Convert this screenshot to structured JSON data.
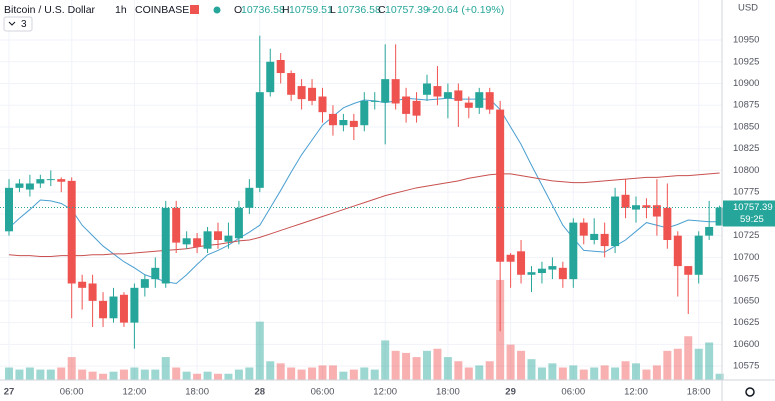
{
  "header": {
    "symbol": "Bitcoin / U.S. Dollar",
    "interval": "1h",
    "exchange": "COINBASE",
    "o": "O",
    "h": "H",
    "l": "L",
    "c": "C",
    "change": "+20.64 (+0.19%)",
    "indicator_count": 3,
    "currency": "USD",
    "countdown": "59:25"
  },
  "chart_data": {
    "type": "candlestick",
    "categories": [
      "27",
      null,
      null,
      null,
      null,
      null,
      "06:00",
      null,
      null,
      null,
      null,
      null,
      "12:00",
      null,
      null,
      null,
      null,
      null,
      "18:00",
      null,
      null,
      null,
      null,
      null,
      "28",
      null,
      null,
      null,
      null,
      null,
      "06:00",
      null,
      null,
      null,
      null,
      null,
      "12:00",
      null,
      null,
      null,
      null,
      null,
      "18:00",
      null,
      null,
      null,
      null,
      null,
      "29",
      null,
      null,
      null,
      null,
      null,
      "06:00",
      null,
      null,
      null,
      null,
      null,
      "12:00",
      null,
      null,
      null,
      null,
      null,
      "18:00",
      null,
      null
    ],
    "open": [
      10730,
      10780,
      10778,
      10785,
      10790,
      10790,
      10788,
      10672,
      10670,
      10650,
      10630,
      10657,
      10625,
      10665,
      10675,
      10670,
      10757,
      10715,
      10722,
      10710,
      10730,
      10718,
      10722,
      10757,
      10780,
      10890,
      10927,
      10912,
      10897,
      10895,
      10885,
      10865,
      10852,
      10857,
      10852,
      10880,
      10878,
      10905,
      10885,
      10880,
      10887,
      10897,
      10883,
      10892,
      10878,
      10872,
      10890,
      10870,
      10703,
      10707,
      10680,
      10682,
      10686,
      10688,
      10675,
      10740,
      10720,
      10727,
      10713,
      10772,
      10755,
      10760,
      10760,
      10757,
      10725,
      10690,
      10680,
      10725,
      10736.58
    ],
    "high": [
      10790,
      10790,
      10795,
      10795,
      10800,
      10792,
      10792,
      10680,
      10680,
      10660,
      10665,
      10660,
      10670,
      10680,
      10700,
      10765,
      10765,
      10730,
      10728,
      10735,
      10740,
      10740,
      10765,
      10790,
      10955,
      10940,
      10935,
      10915,
      10905,
      10905,
      10895,
      10875,
      10865,
      10865,
      10890,
      10890,
      10945,
      10945,
      10895,
      10890,
      10910,
      10920,
      10900,
      10900,
      10885,
      10895,
      10895,
      10880,
      10705,
      10720,
      10690,
      10695,
      10700,
      10695,
      10745,
      10745,
      10745,
      10740,
      10780,
      10790,
      10770,
      10768,
      10790,
      10785,
      10730,
      10690,
      10730,
      10765,
      10759.51
    ],
    "low": [
      10725,
      10775,
      10770,
      10780,
      10782,
      10775,
      10630,
      10640,
      10620,
      10620,
      10625,
      10620,
      10595,
      10655,
      10665,
      10665,
      10705,
      10710,
      10705,
      10705,
      10710,
      10710,
      10715,
      10750,
      10775,
      10885,
      10900,
      10880,
      10870,
      10875,
      10855,
      10840,
      10845,
      10835,
      10845,
      10870,
      10830,
      10870,
      10855,
      10855,
      10880,
      10875,
      10860,
      10850,
      10860,
      10865,
      10865,
      10615,
      10665,
      10670,
      10660,
      10670,
      10675,
      10665,
      10665,
      10715,
      10715,
      10700,
      10705,
      10745,
      10740,
      10745,
      10725,
      10710,
      10655,
      10635,
      10670,
      10720,
      10736.58
    ],
    "close": [
      10780,
      10785,
      10785,
      10790,
      10790,
      10787,
      10670,
      10665,
      10650,
      10630,
      10655,
      10625,
      10665,
      10675,
      10688,
      10757,
      10717,
      10722,
      10712,
      10730,
      10720,
      10725,
      10757,
      10780,
      10890,
      10925,
      10912,
      10887,
      10882,
      10880,
      10867,
      10852,
      10858,
      10850,
      10880,
      10880,
      10905,
      10877,
      10865,
      10863,
      10900,
      10885,
      10890,
      10880,
      10872,
      10890,
      10870,
      10695,
      10695,
      10680,
      10683,
      10687,
      10690,
      10675,
      10740,
      10725,
      10727,
      10713,
      10770,
      10757,
      10760,
      10757,
      10747,
      10720,
      10690,
      10680,
      10725,
      10735,
      10757.39
    ],
    "volume": [
      12,
      10,
      12,
      10,
      10,
      12,
      22,
      10,
      8,
      6,
      8,
      10,
      12,
      10,
      10,
      22,
      12,
      8,
      6,
      8,
      6,
      6,
      10,
      12,
      56,
      18,
      16,
      12,
      10,
      12,
      14,
      14,
      8,
      10,
      12,
      10,
      38,
      28,
      26,
      22,
      28,
      30,
      22,
      18,
      12,
      14,
      18,
      96,
      34,
      28,
      20,
      12,
      16,
      12,
      14,
      10,
      12,
      14,
      12,
      18,
      16,
      10,
      14,
      28,
      30,
      42,
      30,
      36,
      6
    ],
    "up_color": "#26a69a",
    "down_color": "#ef5350",
    "series": [
      {
        "color": "#4a9fd1",
        "values": [
          10734,
          10745,
          10755,
          10766,
          10765,
          10762,
          10755,
          10737,
          10725,
          10713,
          10704,
          10695,
          10688,
          10680,
          10676,
          10672,
          10670,
          10680,
          10692,
          10703,
          10708,
          10714,
          10722,
          10729,
          10737,
          10757,
          10777,
          10798,
          10818,
          10835,
          10852,
          10862,
          10872,
          10877,
          10881,
          10880,
          10878,
          10880,
          10883,
          10882,
          10881,
          10882,
          10883,
          10882,
          10882,
          10882,
          10882,
          10870,
          10850,
          10830,
          10806,
          10783,
          10760,
          10737,
          10722,
          10708,
          10707,
          10706,
          10713,
          10720,
          10730,
          10740,
          10737,
          10734,
          10738,
          10743,
          10742,
          10741,
          10741
        ]
      },
      {
        "color": "#c8504f",
        "values": [
          10703,
          10702,
          10702,
          10701,
          10701,
          10702,
          10702,
          10702,
          10703,
          10703,
          10704,
          10704,
          10705,
          10706,
          10707,
          10708,
          10709,
          10710,
          10712,
          10714,
          10715,
          10717,
          10719,
          10720,
          10723,
          10727,
          10731,
          10735,
          10739,
          10743,
          10747,
          10751,
          10755,
          10759,
          10763,
          10767,
          10771,
          10774,
          10777,
          10780,
          10782,
          10784,
          10786,
          10788,
          10791,
          10793,
          10795,
          10796,
          10796,
          10794,
          10792,
          10790,
          10788,
          10787,
          10786,
          10786,
          10787,
          10788,
          10789,
          10790,
          10791,
          10792,
          10792,
          10793,
          10794,
          10794,
          10795,
          10796,
          10797
        ]
      }
    ],
    "ylim": [
      10559,
      10996
    ],
    "yticks": [
      10575,
      10600,
      10625,
      10650,
      10675,
      10700,
      10725,
      10750,
      10775,
      10800,
      10825,
      10850,
      10875,
      10900,
      10925,
      10950
    ],
    "grid": true
  }
}
